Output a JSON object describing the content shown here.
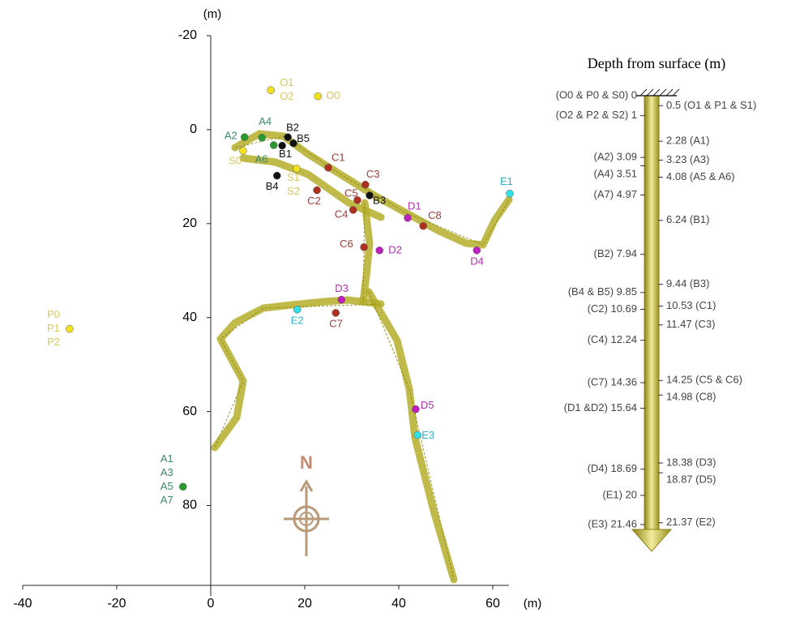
{
  "plot": {
    "type": "scatter",
    "x_unit": "(m)",
    "y_unit": "(m)",
    "xlim": [
      -40,
      64
    ],
    "ylim": [
      -20,
      97
    ],
    "y_inverted": true,
    "xticks": [
      -40,
      -20,
      0,
      20,
      40,
      60
    ],
    "yticks": [
      -20,
      0,
      20,
      40,
      60,
      80
    ],
    "compass": "N",
    "points": [
      {
        "labels": [
          "O1",
          "O2"
        ],
        "x": 12.8,
        "y": -8.4,
        "color": "#f2e21e",
        "label_color": "#d8c860"
      },
      {
        "labels": [
          "O0"
        ],
        "x": 22.8,
        "y": -7.1,
        "color": "#f2e21e",
        "label_color": "#d8c860"
      },
      {
        "labels": [
          "P0",
          "P1",
          "P2"
        ],
        "x": -30,
        "y": 42.4,
        "color": "#f2e21e",
        "label_color": "#d8c860"
      },
      {
        "labels": [
          "A2"
        ],
        "x": 7.2,
        "y": 1.6,
        "color": "#2a9a30",
        "label_color": "#3a8a6a"
      },
      {
        "labels": [
          "A4"
        ],
        "x": 10.9,
        "y": 1.7,
        "color": "#2a9a30",
        "label_color": "#3a8a6a"
      },
      {
        "labels": [
          "A6"
        ],
        "x": 13.4,
        "y": 3.3,
        "color": "#2a9a30",
        "label_color": "#3a8a6a"
      },
      {
        "labels": [
          "S0"
        ],
        "x": 6.9,
        "y": 4.5,
        "color": "#f2e21e",
        "label_color": "#d8c860"
      },
      {
        "labels": [
          "A1",
          "A3",
          "A5",
          "A7"
        ],
        "x": -5.9,
        "y": 76,
        "color": "#2a9a30",
        "label_color": "#3a8a6a"
      },
      {
        "labels": [
          "B2"
        ],
        "x": 16.4,
        "y": 1.6,
        "color": "#111111",
        "label_color": "#111111"
      },
      {
        "labels": [
          "B5"
        ],
        "x": 17.6,
        "y": 2.9,
        "color": "#111111",
        "label_color": "#111111"
      },
      {
        "labels": [
          "B1"
        ],
        "x": 15.2,
        "y": 3.4,
        "color": "#111111",
        "label_color": "#111111"
      },
      {
        "labels": [
          "B4"
        ],
        "x": 14.1,
        "y": 9.8,
        "color": "#111111",
        "label_color": "#111111"
      },
      {
        "labels": [
          "S1",
          "S2"
        ],
        "x": 18.3,
        "y": 8.3,
        "color": "#f2e21e",
        "label_color": "#d8c860"
      },
      {
        "labels": [
          "C1"
        ],
        "x": 25,
        "y": 8.1,
        "color": "#b03020",
        "label_color": "#a03c3c"
      },
      {
        "labels": [
          "C3"
        ],
        "x": 32.9,
        "y": 11.7,
        "color": "#b03020",
        "label_color": "#a03c3c"
      },
      {
        "labels": [
          "C2"
        ],
        "x": 22.6,
        "y": 12.9,
        "color": "#b03020",
        "label_color": "#a03c3c"
      },
      {
        "labels": [
          "C5"
        ],
        "x": 31.2,
        "y": 15,
        "color": "#b03020",
        "label_color": "#a03c3c"
      },
      {
        "labels": [
          "B3"
        ],
        "x": 33.8,
        "y": 14,
        "color": "#111111",
        "label_color": "#111111"
      },
      {
        "labels": [
          "C4"
        ],
        "x": 30.3,
        "y": 17.1,
        "color": "#b03020",
        "label_color": "#a03c3c"
      },
      {
        "labels": [
          "D1"
        ],
        "x": 41.9,
        "y": 18.8,
        "color": "#c020c0",
        "label_color": "#b030b0"
      },
      {
        "labels": [
          "C8"
        ],
        "x": 45.2,
        "y": 20.5,
        "color": "#b03020",
        "label_color": "#a03c3c"
      },
      {
        "labels": [
          "E1"
        ],
        "x": 63.6,
        "y": 13.6,
        "color": "#30e0e8",
        "label_color": "#30b0c0"
      },
      {
        "labels": [
          "C6"
        ],
        "x": 32.6,
        "y": 25,
        "color": "#b03020",
        "label_color": "#a03c3c"
      },
      {
        "labels": [
          "D2"
        ],
        "x": 35.9,
        "y": 25.7,
        "color": "#c020c0",
        "label_color": "#b030b0"
      },
      {
        "labels": [
          "D4"
        ],
        "x": 56.6,
        "y": 25.7,
        "color": "#c020c0",
        "label_color": "#b030b0"
      },
      {
        "labels": [
          "D3"
        ],
        "x": 27.8,
        "y": 36.2,
        "color": "#c020c0",
        "label_color": "#b030b0"
      },
      {
        "labels": [
          "E2"
        ],
        "x": 18.4,
        "y": 38.3,
        "color": "#30e0e8",
        "label_color": "#30b0c0"
      },
      {
        "labels": [
          "C7"
        ],
        "x": 26.6,
        "y": 39,
        "color": "#b03020",
        "label_color": "#a03c3c"
      },
      {
        "labels": [
          "D5"
        ],
        "x": 43.6,
        "y": 59.5,
        "color": "#c020c0",
        "label_color": "#b030b0"
      },
      {
        "labels": [
          "E3"
        ],
        "x": 44,
        "y": 65,
        "color": "#30e0e8",
        "label_color": "#30b0c0"
      }
    ]
  },
  "depth_scale": {
    "title": "Depth from surface (m)",
    "ylim": [
      0,
      22.8
    ],
    "left": [
      {
        "value": 0,
        "label": "(O0 & P0 & S0) 0"
      },
      {
        "value": 1,
        "label": "(O2 & P2 & S2) 1"
      },
      {
        "value": 3.09,
        "label": "(A2) 3.09"
      },
      {
        "value": 3.51,
        "label": "(A4) 3.51"
      },
      {
        "value": 4.97,
        "label": "(A7) 4.97"
      },
      {
        "value": 7.94,
        "label": "(B2) 7.94"
      },
      {
        "value": 9.85,
        "label": "(B4 & B5) 9.85"
      },
      {
        "value": 10.69,
        "label": "(C2) 10.69"
      },
      {
        "value": 12.24,
        "label": "(C4) 12.24"
      },
      {
        "value": 14.36,
        "label": "(C7) 14.36"
      },
      {
        "value": 15.64,
        "label": "(D1 &D2) 15.64"
      },
      {
        "value": 18.69,
        "label": "(D4) 18.69"
      },
      {
        "value": 20,
        "label": "(E1) 20"
      },
      {
        "value": 21.46,
        "label": "(E3) 21.46"
      }
    ],
    "right": [
      {
        "value": 0.5,
        "label": "0.5 (O1 & P1 & S1)"
      },
      {
        "value": 2.28,
        "label": "2.28 (A1)"
      },
      {
        "value": 3.23,
        "label": "3.23 (A3)"
      },
      {
        "value": 4.08,
        "label": "4.08 (A5 & A6)"
      },
      {
        "value": 6.24,
        "label": "6.24 (B1)"
      },
      {
        "value": 9.44,
        "label": "9.44 (B3)"
      },
      {
        "value": 10.53,
        "label": "10.53 (C1)"
      },
      {
        "value": 11.47,
        "label": "11.47 (C3)"
      },
      {
        "value": 14.25,
        "label": "14.25 (C5 & C6)"
      },
      {
        "value": 14.98,
        "label": "14.98 (C8)"
      },
      {
        "value": 18.38,
        "label": "18.38 (D3)"
      },
      {
        "value": 18.87,
        "label": "18.87 (D5)"
      },
      {
        "value": 21.37,
        "label": "21.37 (E2)"
      }
    ]
  }
}
